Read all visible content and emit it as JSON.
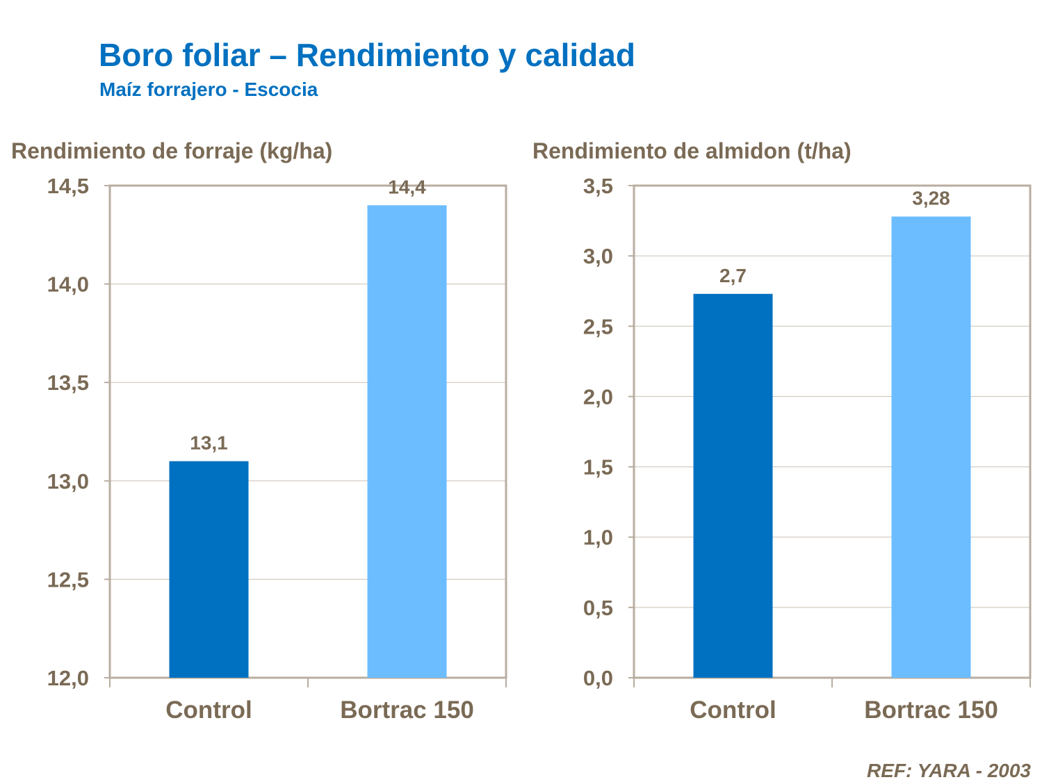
{
  "title": "Boro foliar – Rendimiento y calidad",
  "subtitle": "Maíz forrajero - Escocia",
  "reference": "REF: YARA - 2003",
  "colors": {
    "control": "#0070c0",
    "bortrac": "#6bbdff",
    "text": "#7a6a55",
    "axis": "#b8ada0",
    "grid": "#c9c0b5"
  },
  "chart_data": [
    {
      "type": "bar",
      "title": "Rendimiento de forraje (kg/ha)",
      "categories": [
        "Control",
        "Bortrac 150"
      ],
      "values": [
        13.1,
        14.4
      ],
      "data_labels": [
        "13,1",
        "14,4"
      ],
      "ylim": [
        12.0,
        14.5
      ],
      "yticks": [
        12.0,
        12.5,
        13.0,
        13.5,
        14.0,
        14.5
      ],
      "ytick_labels": [
        "12,0",
        "12,5",
        "13,0",
        "13,5",
        "14,0",
        "14,5"
      ],
      "grid": true
    },
    {
      "type": "bar",
      "title": "Rendimiento de almidon (t/ha)",
      "categories": [
        "Control",
        "Bortrac 150"
      ],
      "values": [
        2.73,
        3.28
      ],
      "data_labels": [
        "2,7",
        "3,28"
      ],
      "ylim": [
        0.0,
        3.5
      ],
      "yticks": [
        0.0,
        0.5,
        1.0,
        1.5,
        2.0,
        2.5,
        3.0,
        3.5
      ],
      "ytick_labels": [
        "0,0",
        "0,5",
        "1,0",
        "1,5",
        "2,0",
        "2,5",
        "3,0",
        "3,5"
      ],
      "grid": true
    }
  ]
}
